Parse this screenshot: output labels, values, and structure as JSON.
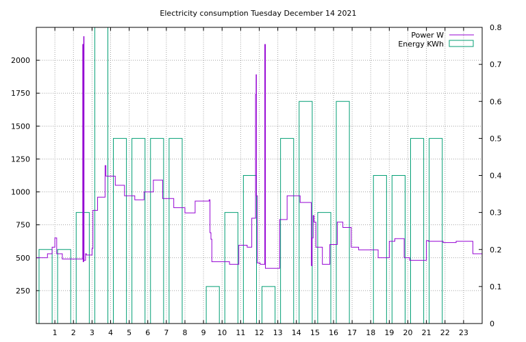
{
  "chart_data": {
    "type": "line",
    "title": "Electricity consumption Tuesday December 14 2021",
    "xlim": [
      0,
      24
    ],
    "x_ticks": [
      1,
      2,
      3,
      4,
      5,
      6,
      7,
      8,
      9,
      10,
      11,
      12,
      13,
      14,
      15,
      16,
      17,
      18,
      19,
      20,
      21,
      22,
      23
    ],
    "y_left": {
      "lim": [
        0,
        2250
      ],
      "ticks": [
        250,
        500,
        750,
        1000,
        1250,
        1500,
        1750,
        2000
      ]
    },
    "y_right": {
      "lim": [
        0,
        0.8
      ],
      "ticks": [
        0,
        0.1,
        0.2,
        0.3,
        0.4,
        0.5,
        0.6,
        0.7,
        0.8
      ]
    },
    "grid": true,
    "legend_position": "top-right",
    "series": [
      {
        "name": "Power W",
        "axis": "left",
        "color": "#9400d3",
        "style": "steps",
        "points": [
          [
            0,
            500
          ],
          [
            0.6,
            500
          ],
          [
            0.6,
            530
          ],
          [
            0.85,
            530
          ],
          [
            0.85,
            580
          ],
          [
            1.0,
            580
          ],
          [
            1.0,
            650
          ],
          [
            1.1,
            650
          ],
          [
            1.1,
            530
          ],
          [
            1.4,
            530
          ],
          [
            1.4,
            490
          ],
          [
            2.5,
            490
          ],
          [
            2.5,
            2120
          ],
          [
            2.52,
            2120
          ],
          [
            2.52,
            470
          ],
          [
            2.55,
            470
          ],
          [
            2.55,
            2180
          ],
          [
            2.57,
            2180
          ],
          [
            2.57,
            480
          ],
          [
            2.65,
            480
          ],
          [
            2.65,
            530
          ],
          [
            2.7,
            530
          ],
          [
            2.7,
            520
          ],
          [
            3.0,
            520
          ],
          [
            3.0,
            570
          ],
          [
            3.05,
            570
          ],
          [
            3.05,
            860
          ],
          [
            3.3,
            860
          ],
          [
            3.3,
            960
          ],
          [
            3.7,
            960
          ],
          [
            3.7,
            1200
          ],
          [
            3.75,
            1200
          ],
          [
            3.75,
            1120
          ],
          [
            4.25,
            1120
          ],
          [
            4.25,
            1050
          ],
          [
            4.75,
            1050
          ],
          [
            4.75,
            970
          ],
          [
            5.3,
            970
          ],
          [
            5.3,
            940
          ],
          [
            5.8,
            940
          ],
          [
            5.8,
            1000
          ],
          [
            6.3,
            1000
          ],
          [
            6.3,
            1090
          ],
          [
            6.8,
            1090
          ],
          [
            6.8,
            950
          ],
          [
            7.4,
            950
          ],
          [
            7.4,
            880
          ],
          [
            8.0,
            880
          ],
          [
            8.0,
            840
          ],
          [
            8.55,
            840
          ],
          [
            8.55,
            930
          ],
          [
            9.3,
            930
          ],
          [
            9.3,
            940
          ],
          [
            9.35,
            940
          ],
          [
            9.35,
            690
          ],
          [
            9.4,
            690
          ],
          [
            9.4,
            640
          ],
          [
            9.45,
            640
          ],
          [
            9.45,
            470
          ],
          [
            10.4,
            470
          ],
          [
            10.4,
            450
          ],
          [
            10.9,
            450
          ],
          [
            10.9,
            595
          ],
          [
            11.35,
            595
          ],
          [
            11.35,
            580
          ],
          [
            11.6,
            580
          ],
          [
            11.6,
            800
          ],
          [
            11.8,
            800
          ],
          [
            11.8,
            1740
          ],
          [
            11.83,
            1740
          ],
          [
            11.83,
            1890
          ],
          [
            11.85,
            1890
          ],
          [
            11.85,
            970
          ],
          [
            11.9,
            970
          ],
          [
            11.9,
            460
          ],
          [
            12.05,
            460
          ],
          [
            12.05,
            450
          ],
          [
            12.3,
            450
          ],
          [
            12.3,
            2120
          ],
          [
            12.33,
            2120
          ],
          [
            12.33,
            420
          ],
          [
            13.1,
            420
          ],
          [
            13.1,
            790
          ],
          [
            13.5,
            790
          ],
          [
            13.5,
            970
          ],
          [
            14.2,
            970
          ],
          [
            14.2,
            920
          ],
          [
            14.8,
            920
          ],
          [
            14.8,
            440
          ],
          [
            14.85,
            440
          ],
          [
            14.85,
            650
          ],
          [
            14.9,
            650
          ],
          [
            14.9,
            820
          ],
          [
            14.95,
            820
          ],
          [
            14.95,
            770
          ],
          [
            15.05,
            770
          ],
          [
            15.05,
            580
          ],
          [
            15.4,
            580
          ],
          [
            15.4,
            450
          ],
          [
            15.8,
            450
          ],
          [
            15.8,
            600
          ],
          [
            16.2,
            600
          ],
          [
            16.2,
            770
          ],
          [
            16.5,
            770
          ],
          [
            16.5,
            730
          ],
          [
            16.95,
            730
          ],
          [
            16.95,
            580
          ],
          [
            17.35,
            580
          ],
          [
            17.35,
            560
          ],
          [
            18.4,
            560
          ],
          [
            18.4,
            500
          ],
          [
            19.0,
            500
          ],
          [
            19.0,
            625
          ],
          [
            19.3,
            625
          ],
          [
            19.3,
            645
          ],
          [
            19.8,
            645
          ],
          [
            19.8,
            500
          ],
          [
            20.1,
            500
          ],
          [
            20.1,
            480
          ],
          [
            21.0,
            480
          ],
          [
            21.0,
            630
          ],
          [
            21.1,
            630
          ],
          [
            21.1,
            625
          ],
          [
            21.9,
            625
          ],
          [
            21.9,
            615
          ],
          [
            22.6,
            615
          ],
          [
            22.6,
            625
          ],
          [
            23.5,
            625
          ],
          [
            23.5,
            530
          ],
          [
            24,
            530
          ]
        ]
      },
      {
        "name": "Energy KWh",
        "axis": "right",
        "color": "#009e73",
        "style": "hourly-boxes",
        "x": [
          0,
          1,
          2,
          3,
          4,
          5,
          6,
          7,
          8,
          9,
          10,
          11,
          12,
          13,
          14,
          15,
          16,
          17,
          18,
          19,
          20,
          21,
          22,
          23
        ],
        "values": [
          0.2,
          0.2,
          0.3,
          0.8,
          0.5,
          0.5,
          0.5,
          0.5,
          0,
          0.1,
          0.3,
          0.4,
          0.1,
          0.5,
          0.6,
          0.3,
          0.6,
          0,
          0.4,
          0.4,
          0.5,
          0.5,
          0,
          0
        ]
      }
    ]
  },
  "colors": {
    "power": "#9400d3",
    "energy": "#009e73",
    "grid": "#a0a0a0"
  }
}
